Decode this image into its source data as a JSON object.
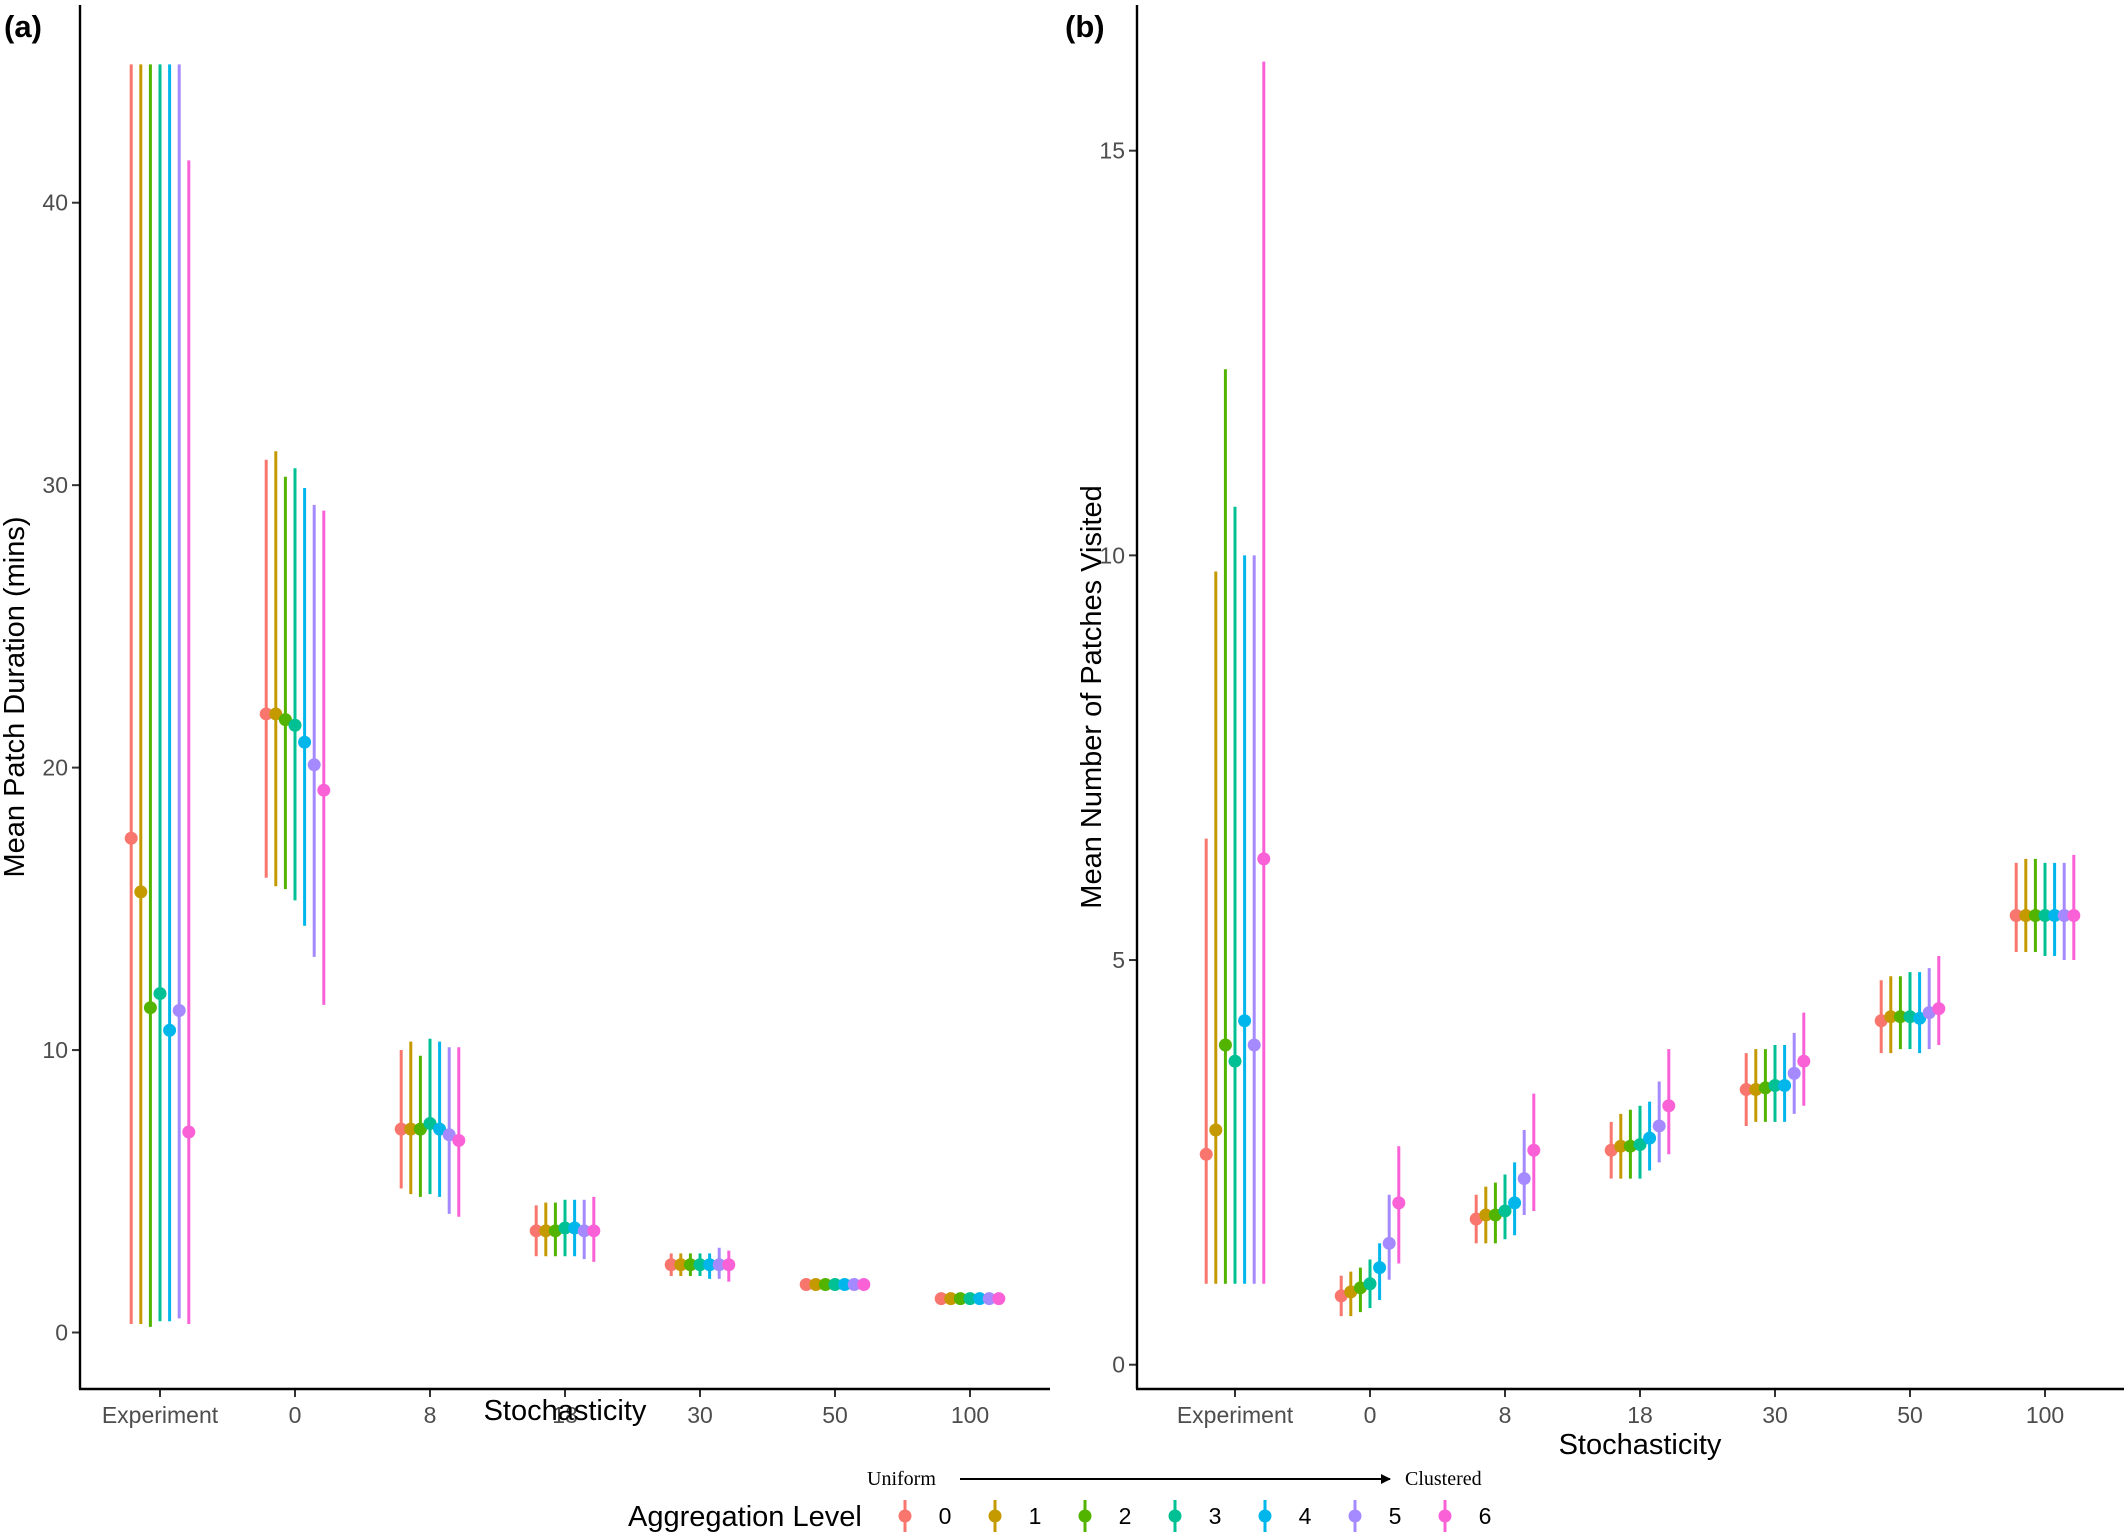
{
  "colors": {
    "0": "#F8766D",
    "1": "#C49A00",
    "2": "#53B400",
    "3": "#00C094",
    "4": "#00B6EB",
    "5": "#A58AFF",
    "6": "#FB61D7"
  },
  "chart_data": [
    {
      "type": "scatter",
      "panel_label": "(a)",
      "xlabel": "Stochasticity",
      "ylabel": "Mean Patch Duration (mins)",
      "categories": [
        "Experiment",
        "0",
        "8",
        "18",
        "30",
        "50",
        "100"
      ],
      "yticks": [
        "0",
        "10",
        "20",
        "30",
        "40"
      ],
      "ylim": [
        -2,
        47
      ],
      "series": [
        {
          "name": "0",
          "values": [
            17.5,
            21.9,
            7.2,
            3.6,
            2.4,
            1.7,
            1.2
          ],
          "lower": [
            0.3,
            16.1,
            5.1,
            2.7,
            2.0,
            1.6,
            1.1
          ],
          "upper": [
            44.9,
            30.9,
            10.0,
            4.5,
            2.8,
            1.9,
            1.4
          ]
        },
        {
          "name": "1",
          "values": [
            15.6,
            21.9,
            7.2,
            3.6,
            2.4,
            1.7,
            1.2
          ],
          "lower": [
            0.3,
            15.8,
            4.9,
            2.7,
            2.0,
            1.6,
            1.1
          ],
          "upper": [
            44.9,
            31.2,
            10.3,
            4.6,
            2.8,
            1.9,
            1.4
          ]
        },
        {
          "name": "2",
          "values": [
            11.5,
            21.7,
            7.2,
            3.6,
            2.4,
            1.7,
            1.2
          ],
          "lower": [
            0.2,
            15.7,
            4.8,
            2.7,
            2.0,
            1.6,
            1.1
          ],
          "upper": [
            44.9,
            30.3,
            9.8,
            4.6,
            2.8,
            1.9,
            1.4
          ]
        },
        {
          "name": "3",
          "values": [
            12.0,
            21.5,
            7.4,
            3.7,
            2.4,
            1.7,
            1.2
          ],
          "lower": [
            0.4,
            15.3,
            4.9,
            2.7,
            2.0,
            1.6,
            1.1
          ],
          "upper": [
            44.9,
            30.6,
            10.4,
            4.7,
            2.8,
            1.9,
            1.4
          ]
        },
        {
          "name": "4",
          "values": [
            10.7,
            20.9,
            7.2,
            3.7,
            2.4,
            1.7,
            1.2
          ],
          "lower": [
            0.4,
            14.4,
            4.8,
            2.7,
            1.9,
            1.6,
            1.1
          ],
          "upper": [
            44.9,
            29.9,
            10.3,
            4.7,
            2.8,
            1.9,
            1.4
          ]
        },
        {
          "name": "5",
          "values": [
            11.4,
            20.1,
            7.0,
            3.6,
            2.4,
            1.7,
            1.2
          ],
          "lower": [
            0.5,
            13.3,
            4.2,
            2.6,
            1.9,
            1.6,
            1.1
          ],
          "upper": [
            44.9,
            29.3,
            10.1,
            4.7,
            3.0,
            1.9,
            1.4
          ]
        },
        {
          "name": "6",
          "values": [
            7.1,
            19.2,
            6.8,
            3.6,
            2.4,
            1.7,
            1.2
          ],
          "lower": [
            0.3,
            11.6,
            4.1,
            2.5,
            1.8,
            1.6,
            1.1
          ],
          "upper": [
            41.5,
            29.1,
            10.1,
            4.8,
            2.9,
            1.9,
            1.4
          ]
        }
      ]
    },
    {
      "type": "scatter",
      "panel_label": "(b)",
      "xlabel": "Stochasticity",
      "ylabel": "Mean Number of Patches Visited",
      "categories": [
        "Experiment",
        "0",
        "8",
        "18",
        "30",
        "50",
        "100"
      ],
      "yticks": [
        "0",
        "5",
        "10",
        "15"
      ],
      "ylim": [
        -0.3,
        16.8
      ],
      "series": [
        {
          "name": "0",
          "values": [
            2.6,
            0.85,
            1.8,
            2.65,
            3.4,
            4.25,
            5.55
          ],
          "lower": [
            1.0,
            0.6,
            1.5,
            2.3,
            2.95,
            3.85,
            5.1
          ],
          "upper": [
            6.5,
            1.1,
            2.1,
            3.0,
            3.85,
            4.75,
            6.2
          ]
        },
        {
          "name": "1",
          "values": [
            2.9,
            0.9,
            1.85,
            2.7,
            3.4,
            4.3,
            5.55
          ],
          "lower": [
            1.0,
            0.6,
            1.5,
            2.3,
            3.0,
            3.85,
            5.1
          ],
          "upper": [
            9.8,
            1.15,
            2.2,
            3.1,
            3.9,
            4.8,
            6.25
          ]
        },
        {
          "name": "2",
          "values": [
            3.95,
            0.95,
            1.85,
            2.7,
            3.42,
            4.3,
            5.55
          ],
          "lower": [
            1.0,
            0.65,
            1.5,
            2.3,
            3.0,
            3.9,
            5.1
          ],
          "upper": [
            12.3,
            1.2,
            2.25,
            3.15,
            3.9,
            4.8,
            6.25
          ]
        },
        {
          "name": "3",
          "values": [
            3.75,
            1.0,
            1.9,
            2.72,
            3.45,
            4.3,
            5.55
          ],
          "lower": [
            1.0,
            0.7,
            1.55,
            2.3,
            3.0,
            3.9,
            5.05
          ],
          "upper": [
            10.6,
            1.3,
            2.35,
            3.2,
            3.95,
            4.85,
            6.2
          ]
        },
        {
          "name": "4",
          "values": [
            4.25,
            1.2,
            2.0,
            2.8,
            3.45,
            4.28,
            5.55
          ],
          "lower": [
            1.0,
            0.8,
            1.6,
            2.4,
            3.0,
            3.85,
            5.05
          ],
          "upper": [
            10.0,
            1.5,
            2.5,
            3.25,
            3.95,
            4.85,
            6.2
          ]
        },
        {
          "name": "5",
          "values": [
            3.95,
            1.5,
            2.3,
            2.95,
            3.6,
            4.35,
            5.55
          ],
          "lower": [
            1.0,
            1.05,
            1.85,
            2.5,
            3.1,
            3.9,
            5.0
          ],
          "upper": [
            10.0,
            2.1,
            2.9,
            3.5,
            4.1,
            4.9,
            6.2
          ]
        },
        {
          "name": "6",
          "values": [
            6.25,
            2.0,
            2.65,
            3.2,
            3.75,
            4.4,
            5.55
          ],
          "lower": [
            1.0,
            1.25,
            1.9,
            2.6,
            3.2,
            3.95,
            5.0
          ],
          "upper": [
            16.1,
            2.7,
            3.35,
            3.9,
            4.35,
            5.05,
            6.3
          ]
        }
      ]
    }
  ],
  "legend": {
    "title": "Aggregation Level",
    "levels": [
      "0",
      "1",
      "2",
      "3",
      "4",
      "5",
      "6"
    ],
    "arrow_left": "Uniform",
    "arrow_right": "Clustered"
  }
}
